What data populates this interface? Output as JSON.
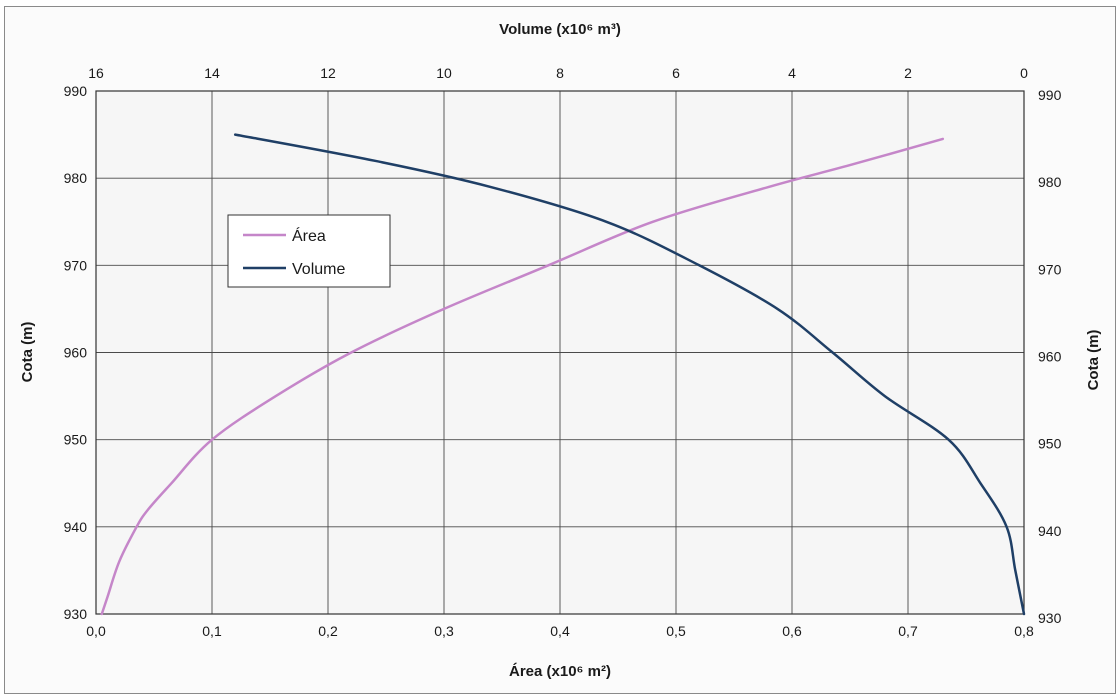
{
  "chart_data": {
    "type": "line",
    "title": "",
    "xlabel": "Área (x10⁶ m²)",
    "x2label": "Volume (x10⁶ m³)",
    "ylabel": "Cota (m)",
    "y2label": "Cota (m)",
    "xlim": [
      0.0,
      0.8
    ],
    "x2lim": [
      16,
      0
    ],
    "ylim": [
      930,
      990
    ],
    "grid": true,
    "legend_position": "upper-left inside plot",
    "x_ticks": [
      "0,0",
      "0,1",
      "0,2",
      "0,3",
      "0,4",
      "0,5",
      "0,6",
      "0,7",
      "0,8"
    ],
    "x2_ticks": [
      "16",
      "14",
      "12",
      "10",
      "8",
      "6",
      "4",
      "2",
      "0"
    ],
    "y_ticks": [
      "930",
      "940",
      "950",
      "960",
      "970",
      "980",
      "990"
    ],
    "y2_ticks": [
      "930",
      "940",
      "950",
      "960",
      "970",
      "980",
      "990"
    ],
    "series": [
      {
        "name": "Área",
        "axis": "bottom",
        "color": "#c586c9",
        "points": [
          [
            0.005,
            930
          ],
          [
            0.01,
            932
          ],
          [
            0.02,
            936
          ],
          [
            0.035,
            940
          ],
          [
            0.045,
            942
          ],
          [
            0.065,
            945
          ],
          [
            0.1,
            950
          ],
          [
            0.155,
            955
          ],
          [
            0.22,
            960
          ],
          [
            0.3,
            965
          ],
          [
            0.39,
            970
          ],
          [
            0.48,
            975
          ],
          [
            0.58,
            979
          ],
          [
            0.65,
            981.5
          ],
          [
            0.73,
            984.5
          ]
        ]
      },
      {
        "name": "Volume",
        "axis": "top",
        "color": "#1f3f66",
        "points": [
          [
            0.0,
            930
          ],
          [
            0.15,
            935
          ],
          [
            0.3,
            940
          ],
          [
            0.75,
            945
          ],
          [
            1.3,
            950
          ],
          [
            2.4,
            955
          ],
          [
            3.3,
            960
          ],
          [
            4.25,
            965
          ],
          [
            5.6,
            970
          ],
          [
            7.2,
            975
          ],
          [
            9.2,
            979
          ],
          [
            11.2,
            982
          ],
          [
            13.6,
            985
          ]
        ]
      }
    ]
  }
}
